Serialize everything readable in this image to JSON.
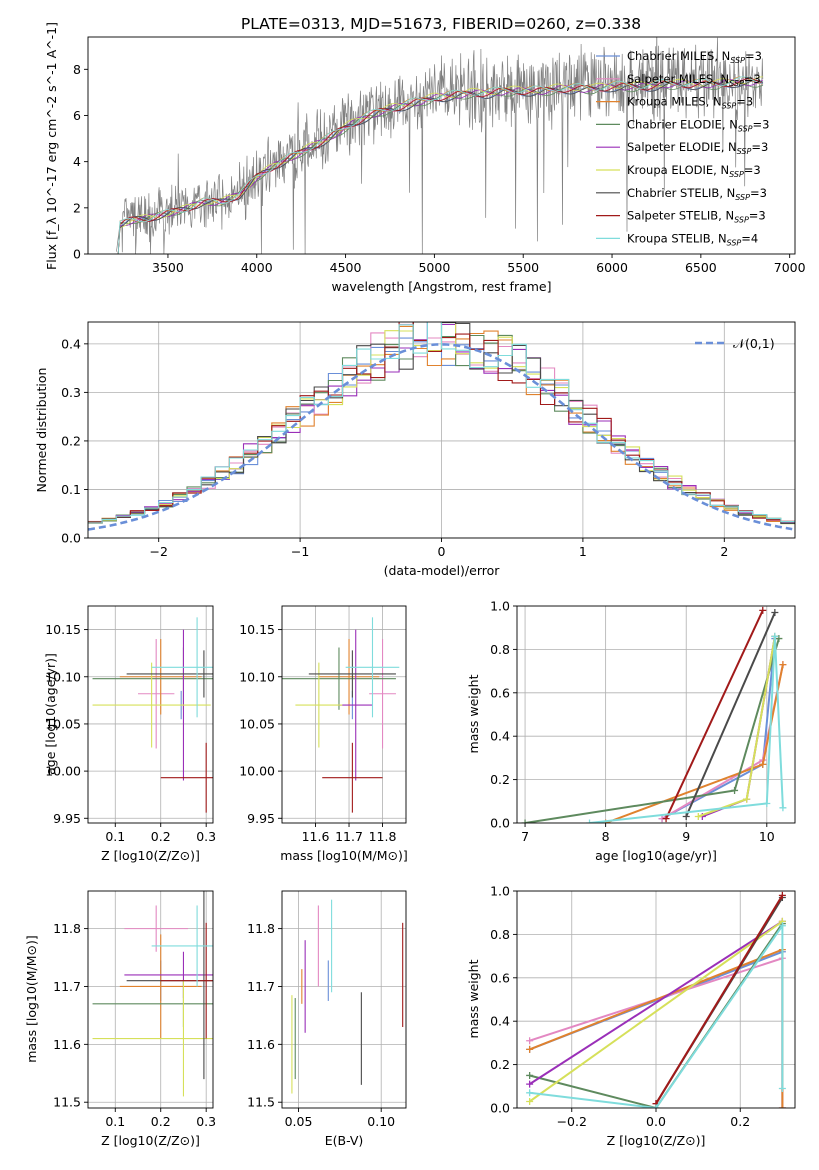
{
  "figure": {
    "title": "PLATE=0313, MJD=51673, FIBERID=0260, z=0.338"
  },
  "colors": {
    "Chabrier MILES": "#6a8fd8",
    "Salpeter MILES": "#e388c2",
    "Kroupa MILES": "#e0822e",
    "Chabrier ELODIE": "#5e8a5e",
    "Salpeter ELODIE": "#9a2fb8",
    "Kroupa ELODIE": "#d6e05a",
    "Chabrier STELIB": "#4a4a4a",
    "Salpeter STELIB": "#a11a1a",
    "Kroupa STELIB": "#7fdcdc",
    "data": "#808080",
    "normal": "#6a8fd8"
  },
  "chart_data": [
    {
      "id": "spectrum",
      "type": "line",
      "xlabel": "wavelength [Angstrom, rest frame]",
      "ylabel": "Flux [f_λ 10^-17 erg cm^-2 s^-1 A^-1]",
      "xlim": [
        3050,
        7030
      ],
      "ylim": [
        0,
        9.4
      ],
      "xticks": [
        3500,
        4000,
        4500,
        5000,
        5500,
        6000,
        6500,
        7000
      ],
      "yticks": [
        0,
        2,
        4,
        6,
        8
      ],
      "legend_position": "upper-right",
      "legend": [
        {
          "name": "Chabrier MILES, N_SSP=3",
          "model": "Chabrier MILES"
        },
        {
          "name": "Salpeter MILES, N_SSP=3",
          "model": "Salpeter MILES"
        },
        {
          "name": "Kroupa MILES, N_SSP=3",
          "model": "Kroupa MILES"
        },
        {
          "name": "Chabrier ELODIE, N_SSP=3",
          "model": "Chabrier ELODIE"
        },
        {
          "name": "Salpeter ELODIE, N_SSP=3",
          "model": "Salpeter ELODIE"
        },
        {
          "name": "Kroupa ELODIE, N_SSP=3",
          "model": "Kroupa ELODIE"
        },
        {
          "name": "Chabrier STELIB, N_SSP=3",
          "model": "Chabrier STELIB"
        },
        {
          "name": "Salpeter STELIB, N_SSP=3",
          "model": "Salpeter STELIB"
        },
        {
          "name": "Kroupa STELIB, N_SSP=4",
          "model": "Kroupa STELIB"
        }
      ],
      "continuum_x": [
        3210,
        3230,
        3300,
        3400,
        3500,
        3600,
        3700,
        3800,
        3900,
        4000,
        4100,
        4200,
        4300,
        4400,
        4500,
        4600,
        4700,
        4800,
        4900,
        5000,
        5100,
        5200,
        5300,
        5400,
        5500,
        5600,
        5700,
        5800,
        5900,
        6000,
        6100,
        6200,
        6300,
        6400,
        6500,
        6600,
        6700,
        6800
      ],
      "continuum_y": [
        0.1,
        1.3,
        1.5,
        1.6,
        1.8,
        2.0,
        2.3,
        2.3,
        2.6,
        3.4,
        3.9,
        4.3,
        4.7,
        5.1,
        5.6,
        6.0,
        6.3,
        6.5,
        6.7,
        6.9,
        7.0,
        7.1,
        7.1,
        7.2,
        7.2,
        7.2,
        7.3,
        7.3,
        7.3,
        7.4,
        7.4,
        7.4,
        7.5,
        7.5,
        7.5,
        7.5,
        7.6,
        7.6
      ]
    },
    {
      "id": "residuals",
      "type": "histogram",
      "xlabel": "(data-model)/error",
      "ylabel": "Normed distribution",
      "xlim": [
        -2.5,
        2.5
      ],
      "ylim": [
        0,
        0.445
      ],
      "xticks": [
        -2,
        -1,
        0,
        1,
        2
      ],
      "yticks": [
        0.0,
        0.1,
        0.2,
        0.3,
        0.4
      ],
      "grid": true,
      "legend_position": "upper-right",
      "legend": [
        {
          "name": "𝒩(0,1)",
          "model": "normal"
        }
      ],
      "bin_width": 0.1
    },
    {
      "id": "age-vs-Z",
      "type": "errorbar",
      "xlabel": "Z [log10(Z/Z⊙)]",
      "ylabel": "age  [log10(age/yr)]",
      "xlim": [
        0.04,
        0.315
      ],
      "ylim": [
        9.945,
        10.175
      ],
      "xticks": [
        0.1,
        0.2,
        0.3
      ],
      "yticks": [
        9.95,
        10.0,
        10.05,
        10.1,
        10.15
      ],
      "grid": true,
      "points": [
        {
          "model": "Chabrier MILES",
          "x": 0.245,
          "xerr": 0.0,
          "y": 10.07,
          "yerr": 0.015
        },
        {
          "model": "Salpeter MILES",
          "x": 0.19,
          "xerr": 0.04,
          "y": 10.082,
          "yerr": 0.058
        },
        {
          "model": "Kroupa MILES",
          "x": 0.2,
          "xerr": 0.09,
          "y": 10.1,
          "yerr": 0.04
        },
        {
          "model": "Chabrier ELODIE",
          "x": 0.25,
          "xerr": 0.2,
          "y": 10.098,
          "yerr": 0.033
        },
        {
          "model": "Salpeter ELODIE",
          "x": 0.25,
          "xerr": 0.0,
          "y": 10.07,
          "yerr": 0.08
        },
        {
          "model": "Kroupa ELODIE",
          "x": 0.18,
          "xerr": 0.13,
          "y": 10.07,
          "yerr": 0.045
        },
        {
          "model": "Chabrier STELIB",
          "x": 0.295,
          "xerr": 0.17,
          "y": 10.103,
          "yerr": 0.025
        },
        {
          "model": "Salpeter STELIB",
          "x": 0.3,
          "xerr": 0.1,
          "y": 9.993,
          "yerr": 0.037
        },
        {
          "model": "Kroupa STELIB",
          "x": 0.28,
          "xerr": 0.1,
          "y": 10.11,
          "yerr": 0.053
        }
      ]
    },
    {
      "id": "age-vs-mass",
      "type": "errorbar",
      "xlabel": "mass [log10(M/M⊙)]",
      "ylabel": "",
      "xlim": [
        11.5,
        11.87
      ],
      "ylim": [
        9.945,
        10.175
      ],
      "xticks": [
        11.6,
        11.7,
        11.8
      ],
      "yticks": [
        9.95,
        10.0,
        10.05,
        10.1,
        10.15
      ],
      "grid": true,
      "points": [
        {
          "model": "Chabrier MILES",
          "x": 11.71,
          "xerr": 0.0,
          "y": 10.07,
          "yerr": 0.015
        },
        {
          "model": "Salpeter MILES",
          "x": 11.8,
          "xerr": 0.04,
          "y": 10.082,
          "yerr": 0.058
        },
        {
          "model": "Kroupa MILES",
          "x": 11.7,
          "xerr": 0.09,
          "y": 10.1,
          "yerr": 0.04
        },
        {
          "model": "Chabrier ELODIE",
          "x": 11.67,
          "xerr": 0.17,
          "y": 10.098,
          "yerr": 0.033
        },
        {
          "model": "Salpeter ELODIE",
          "x": 11.72,
          "xerr": 0.05,
          "y": 10.07,
          "yerr": 0.08
        },
        {
          "model": "Kroupa ELODIE",
          "x": 11.61,
          "xerr": 0.07,
          "y": 10.07,
          "yerr": 0.045
        },
        {
          "model": "Chabrier STELIB",
          "x": 11.71,
          "xerr": 0.13,
          "y": 10.103,
          "yerr": 0.025
        },
        {
          "model": "Salpeter STELIB",
          "x": 11.71,
          "xerr": 0.09,
          "y": 9.993,
          "yerr": 0.037
        },
        {
          "model": "Kroupa STELIB",
          "x": 11.77,
          "xerr": 0.08,
          "y": 10.11,
          "yerr": 0.053
        }
      ]
    },
    {
      "id": "mass-weight-vs-age",
      "type": "line",
      "xlabel": "age  [log10(age/yr)]",
      "ylabel": "mass weight",
      "xlim": [
        6.9,
        10.35
      ],
      "ylim": [
        0.0,
        1.0
      ],
      "xticks": [
        7,
        8,
        9,
        10
      ],
      "yticks": [
        0.0,
        0.2,
        0.4,
        0.6,
        0.8,
        1.0
      ],
      "grid": true,
      "series": [
        {
          "model": "Chabrier MILES",
          "x": [
            8.7,
            9.95,
            10.1
          ],
          "y": [
            0.02,
            0.27,
            0.85
          ]
        },
        {
          "model": "Salpeter MILES",
          "x": [
            8.7,
            9.95,
            10.2
          ],
          "y": [
            0.02,
            0.29,
            0.73
          ]
        },
        {
          "model": "Kroupa MILES",
          "x": [
            8.0,
            9.95,
            10.2
          ],
          "y": [
            0.0,
            0.27,
            0.73
          ]
        },
        {
          "model": "Chabrier ELODIE",
          "x": [
            7.0,
            9.6,
            10.15
          ],
          "y": [
            0.0,
            0.15,
            0.85
          ]
        },
        {
          "model": "Salpeter ELODIE",
          "x": [
            9.2,
            9.75,
            10.1
          ],
          "y": [
            0.03,
            0.11,
            0.86
          ]
        },
        {
          "model": "Kroupa ELODIE",
          "x": [
            9.15,
            9.75,
            10.1
          ],
          "y": [
            0.03,
            0.11,
            0.86
          ]
        },
        {
          "model": "Chabrier STELIB",
          "x": [
            9.0,
            10.1
          ],
          "y": [
            0.03,
            0.97
          ]
        },
        {
          "model": "Salpeter STELIB",
          "x": [
            8.75,
            9.95
          ],
          "y": [
            0.02,
            0.98
          ]
        },
        {
          "model": "Kroupa STELIB",
          "x": [
            7.8,
            10.0,
            10.1,
            10.2
          ],
          "y": [
            0.0,
            0.09,
            0.86,
            0.07
          ]
        }
      ]
    },
    {
      "id": "mass-vs-Z",
      "type": "errorbar",
      "xlabel": "Z [log10(Z/Z⊙)]",
      "ylabel": "mass [log10(M/M⊙)]",
      "xlim": [
        0.04,
        0.315
      ],
      "ylim": [
        11.49,
        11.865
      ],
      "xticks": [
        0.1,
        0.2,
        0.3
      ],
      "yticks": [
        11.5,
        11.6,
        11.7,
        11.8
      ],
      "grid": true,
      "points": [
        {
          "model": "Chabrier MILES",
          "x": 0.2,
          "xerr": 0.0,
          "y": 11.71,
          "yerr": 0.035
        },
        {
          "model": "Salpeter MILES",
          "x": 0.19,
          "xerr": 0.07,
          "y": 11.8,
          "yerr": 0.04
        },
        {
          "model": "Kroupa MILES",
          "x": 0.2,
          "xerr": 0.09,
          "y": 11.7,
          "yerr": 0.09
        },
        {
          "model": "Chabrier ELODIE",
          "x": 0.25,
          "xerr": 0.2,
          "y": 11.67,
          "yerr": 0.04
        },
        {
          "model": "Salpeter ELODIE",
          "x": 0.25,
          "xerr": 0.13,
          "y": 11.72,
          "yerr": 0.04
        },
        {
          "model": "Kroupa ELODIE",
          "x": 0.25,
          "xerr": 0.2,
          "y": 11.61,
          "yerr": 0.1
        },
        {
          "model": "Chabrier STELIB",
          "x": 0.295,
          "xerr": 0.17,
          "y": 11.71,
          "yerr": 0.17
        },
        {
          "model": "Salpeter STELIB",
          "x": 0.3,
          "xerr": 0.1,
          "y": 11.71,
          "yerr": 0.1
        },
        {
          "model": "Kroupa STELIB",
          "x": 0.28,
          "xerr": 0.1,
          "y": 11.77,
          "yerr": 0.07
        }
      ]
    },
    {
      "id": "mass-vs-ebv",
      "type": "errorbar",
      "xlabel": "E(B-V)",
      "ylabel": "",
      "xlim": [
        0.04,
        0.115
      ],
      "ylim": [
        11.49,
        11.865
      ],
      "xticks": [
        0.05,
        0.1
      ],
      "yticks": [
        11.5,
        11.6,
        11.7,
        11.8
      ],
      "grid": true,
      "points": [
        {
          "model": "Chabrier MILES",
          "x": 0.068,
          "xerr": 0.0,
          "y": 11.71,
          "yerr": 0.035
        },
        {
          "model": "Salpeter MILES",
          "x": 0.062,
          "xerr": 0.0,
          "y": 11.77,
          "yerr": 0.07
        },
        {
          "model": "Kroupa MILES",
          "x": 0.052,
          "xerr": 0.0,
          "y": 11.7,
          "yerr": 0.03
        },
        {
          "model": "Chabrier ELODIE",
          "x": 0.048,
          "xerr": 0.0,
          "y": 11.61,
          "yerr": 0.07
        },
        {
          "model": "Salpeter ELODIE",
          "x": 0.054,
          "xerr": 0.0,
          "y": 11.7,
          "yerr": 0.08
        },
        {
          "model": "Kroupa ELODIE",
          "x": 0.046,
          "xerr": 0.0,
          "y": 11.6,
          "yerr": 0.085
        },
        {
          "model": "Chabrier STELIB",
          "x": 0.088,
          "xerr": 0.0,
          "y": 11.61,
          "yerr": 0.08
        },
        {
          "model": "Salpeter STELIB",
          "x": 0.113,
          "xerr": 0.0,
          "y": 11.72,
          "yerr": 0.09
        },
        {
          "model": "Kroupa STELIB",
          "x": 0.07,
          "xerr": 0.0,
          "y": 11.77,
          "yerr": 0.08
        }
      ]
    },
    {
      "id": "mass-weight-vs-Z",
      "type": "line",
      "xlabel": "Z [log10(Z/Z⊙)]",
      "ylabel": "mass weight",
      "xlim": [
        -0.33,
        0.33
      ],
      "ylim": [
        0.0,
        1.0
      ],
      "xticks": [
        -0.2,
        0.0,
        0.2
      ],
      "yticks": [
        0.0,
        0.2,
        0.4,
        0.6,
        0.8,
        1.0
      ],
      "grid": true,
      "series": [
        {
          "model": "Chabrier MILES",
          "x": [
            -0.3,
            0.3,
            0.3
          ],
          "y": [
            0.27,
            0.72,
            0.0
          ]
        },
        {
          "model": "Salpeter MILES",
          "x": [
            -0.3,
            0.3,
            0.3
          ],
          "y": [
            0.31,
            0.69,
            0.0
          ]
        },
        {
          "model": "Kroupa MILES",
          "x": [
            -0.3,
            0.3,
            0.3
          ],
          "y": [
            0.27,
            0.73,
            0.0
          ]
        },
        {
          "model": "Chabrier ELODIE",
          "x": [
            -0.3,
            0.0,
            0.3
          ],
          "y": [
            0.15,
            0.0,
            0.85
          ]
        },
        {
          "model": "Salpeter ELODIE",
          "x": [
            -0.3,
            0.3
          ],
          "y": [
            0.11,
            0.86
          ]
        },
        {
          "model": "Kroupa ELODIE",
          "x": [
            -0.3,
            0.3
          ],
          "y": [
            0.03,
            0.86
          ]
        },
        {
          "model": "Chabrier STELIB",
          "x": [
            0.0,
            0.3
          ],
          "y": [
            0.02,
            0.97
          ]
        },
        {
          "model": "Salpeter STELIB",
          "x": [
            0.0,
            0.3
          ],
          "y": [
            0.02,
            0.98
          ]
        },
        {
          "model": "Kroupa STELIB",
          "x": [
            -0.3,
            0.0,
            0.3,
            0.3
          ],
          "y": [
            0.07,
            0.0,
            0.84,
            0.09
          ]
        }
      ]
    }
  ]
}
